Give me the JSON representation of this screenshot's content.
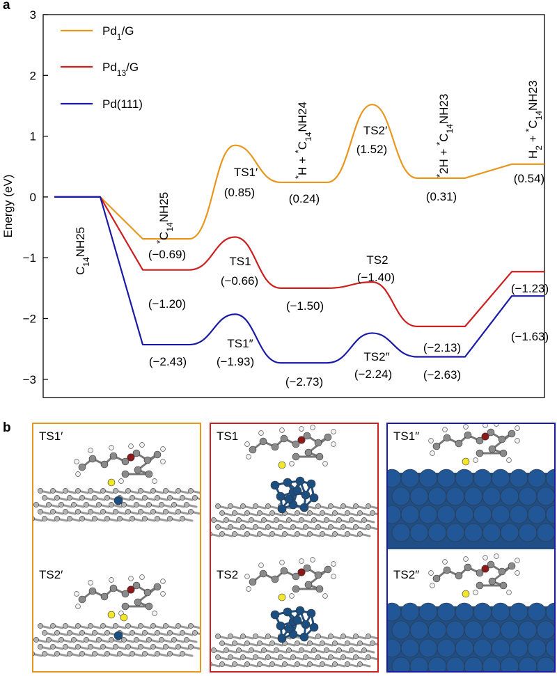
{
  "panel_a_letter": "a",
  "panel_b_letter": "b",
  "colors": {
    "pd1": "#e8961e",
    "pd13": "#cc1f1f",
    "pd111": "#1a1aa6",
    "pd_atom": "#1c4e80",
    "carbon": "#8a8a8a",
    "sulfur": "#f2e62a",
    "oxygen": "#8b1a1a",
    "hydrogen": "#f2f2f2"
  },
  "chart_data": {
    "type": "line",
    "ylabel": "Energy (eV)",
    "ylim": [
      -3.3,
      3
    ],
    "yticks": [
      3,
      2,
      1,
      0,
      -1,
      -2,
      -3
    ],
    "ytick_labels": [
      "3",
      "2",
      "1",
      "0",
      "−1",
      "−2",
      "−3"
    ],
    "legend_position": "top-left",
    "series": [
      {
        "name": "Pd1/G",
        "name_main": "Pd",
        "name_sub": "1",
        "name_tail": "/G",
        "color": "#e8961e",
        "levels": [
          0,
          -0.69,
          0.24,
          0.31,
          0.54
        ],
        "ts": [
          0.85,
          1.52
        ]
      },
      {
        "name": "Pd13/G",
        "name_main": "Pd",
        "name_sub": "13",
        "name_tail": "/G",
        "color": "#cc1f1f",
        "levels": [
          0,
          -1.2,
          -1.5,
          -2.13,
          -1.23
        ],
        "ts": [
          -0.66,
          -1.4
        ]
      },
      {
        "name": "Pd(111)",
        "name_main": "Pd(111)",
        "name_sub": "",
        "name_tail": "",
        "color": "#1a1aa6",
        "levels": [
          0,
          -2.43,
          -2.73,
          -2.63,
          -1.63
        ],
        "ts": [
          -1.93,
          -2.24
        ]
      }
    ],
    "value_labels": {
      "pd1": [
        "(−0.69)",
        "(0.85)",
        "(0.24)",
        "(1.52)",
        "(0.31)",
        "(0.54)"
      ],
      "pd13": [
        "(−1.20)",
        "(−0.66)",
        "(−1.50)",
        "(−1.40)",
        "(−2.13)",
        "(−1.23)"
      ],
      "pd111": [
        "(−2.43)",
        "(−1.93)",
        "(−2.73)",
        "(−2.24)",
        "(−2.63)",
        "(−1.63)"
      ]
    },
    "ts_labels": {
      "pd1": [
        "TS1′",
        "TS2′"
      ],
      "pd13": [
        "TS1",
        "TS2"
      ],
      "pd111": [
        "TS1″",
        "TS2″"
      ]
    },
    "species_labels": {
      "initial": "C14NH25",
      "adsorbed": "*C14NH25",
      "after_ts1": "*H + *C14NH24",
      "after_ts2": "*2H + *C14NH23",
      "final": "H2 + *C14NH23"
    }
  },
  "panel_b": {
    "columns": [
      {
        "id": "pd1",
        "labels": [
          "TS1′",
          "TS2′"
        ]
      },
      {
        "id": "pd13",
        "labels": [
          "TS1",
          "TS2"
        ]
      },
      {
        "id": "pd111",
        "labels": [
          "TS1″",
          "TS2″"
        ]
      }
    ]
  }
}
